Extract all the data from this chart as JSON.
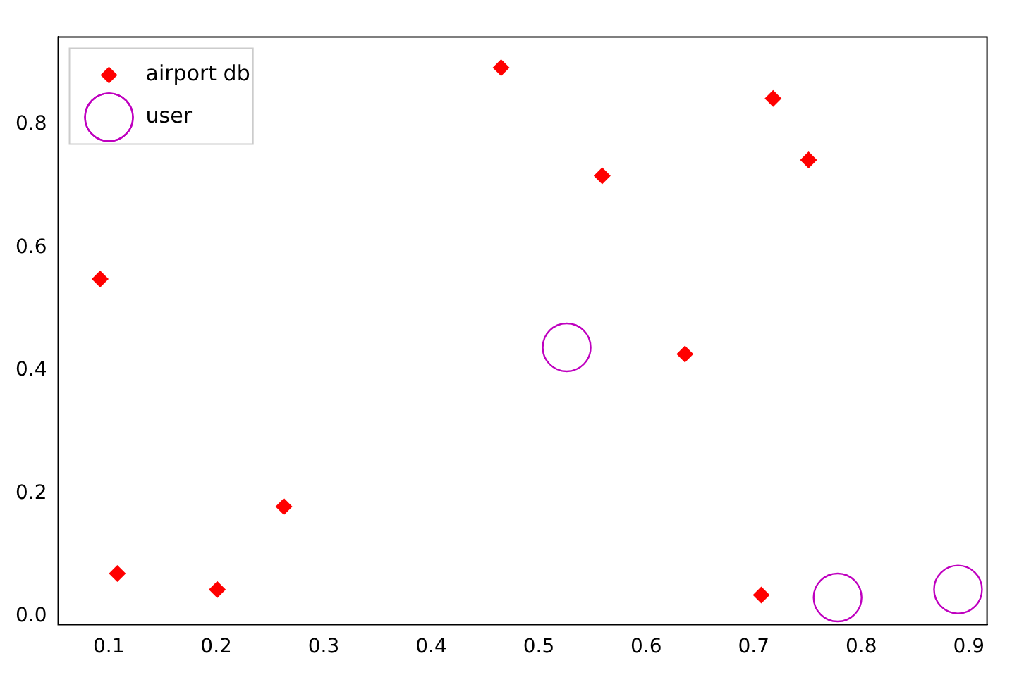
{
  "chart_data": {
    "type": "scatter",
    "legend": "top left",
    "grid": false,
    "xlim": [
      0.053,
      0.917
    ],
    "xticks": [
      0.1,
      0.2,
      0.3,
      0.4,
      0.5,
      0.6,
      0.7,
      0.8,
      0.9
    ],
    "ylim": [
      -0.013,
      0.943
    ],
    "yticks": [
      {
        "value": 0,
        "label": "0.0"
      },
      0.2,
      0.4,
      0.6,
      0.8
    ],
    "series": [
      {
        "name": "airport db",
        "color": "#ff0000",
        "marker": "diamond",
        "x": [
          0.092,
          0.108,
          0.201,
          0.263,
          0.465,
          0.559,
          0.636,
          0.707,
          0.718,
          0.751
        ],
        "values": [
          0.549,
          0.07,
          0.044,
          0.179,
          0.893,
          0.717,
          0.427,
          0.035,
          0.843,
          0.743
        ]
      },
      {
        "name": "user",
        "color": "#bf00bf",
        "marker": "circle",
        "x": [
          0.526,
          0.778,
          0.89
        ],
        "values": [
          0.438,
          0.031,
          0.044
        ]
      }
    ]
  }
}
